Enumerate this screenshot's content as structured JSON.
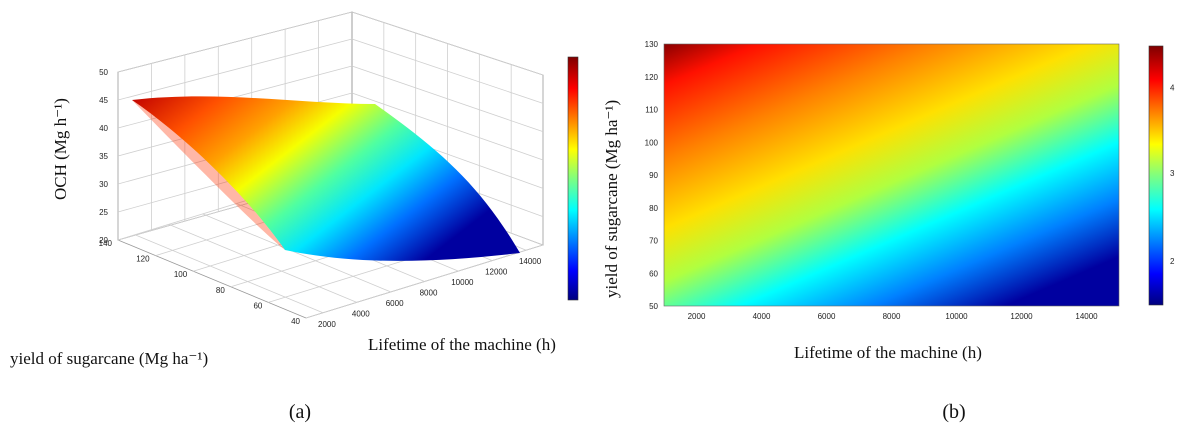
{
  "panels": {
    "a": {
      "label": "(a)"
    },
    "b": {
      "label": "(b)"
    }
  },
  "chart_data": [
    {
      "type": "surface",
      "panel": "(a)",
      "title": "",
      "xlabel": "Lifetime of the machine (h)",
      "ylabel": "yield of sugarcane (Mg ha⁻¹)",
      "zlabel": "OCH (Mg h⁻¹)",
      "xticks": [
        "2000",
        "4000",
        "6000",
        "8000",
        "10000",
        "12000",
        "14000"
      ],
      "yticks": [
        "40",
        "60",
        "80",
        "100",
        "120",
        "140"
      ],
      "zticks": [
        "20",
        "25",
        "30",
        "35",
        "40",
        "45",
        "50"
      ],
      "xlim": [
        1000,
        15000
      ],
      "ylim": [
        40,
        140
      ],
      "zlim": [
        20,
        50
      ],
      "grid": true,
      "colorbar": true,
      "surface_corners": [
        {
          "x": 1000,
          "y": 130,
          "z": 44
        },
        {
          "x": 15000,
          "y": 130,
          "z": 44
        },
        {
          "x": 15000,
          "y": 50,
          "z": 21
        },
        {
          "x": 1000,
          "y": 50,
          "z": 31
        }
      ]
    },
    {
      "type": "heatmap",
      "panel": "(b)",
      "title": "",
      "xlabel": "Lifetime of the machine (h)",
      "ylabel": "yield of sugarcane (Mg ha⁻¹)",
      "xticks": [
        "2000",
        "4000",
        "6000",
        "8000",
        "10000",
        "12000",
        "14000"
      ],
      "yticks": [
        "50",
        "60",
        "70",
        "80",
        "90",
        "100",
        "110",
        "120",
        "130"
      ],
      "colorbar_ticks": [
        "2",
        "3",
        "4"
      ],
      "xlim": [
        1000,
        15000
      ],
      "ylim": [
        50,
        130
      ],
      "colorbar": true
    }
  ],
  "colormap": [
    "#00007f",
    "#0000ff",
    "#007fff",
    "#00ffff",
    "#7fff7f",
    "#ffff00",
    "#ff7f00",
    "#ff0000",
    "#7f0000"
  ]
}
